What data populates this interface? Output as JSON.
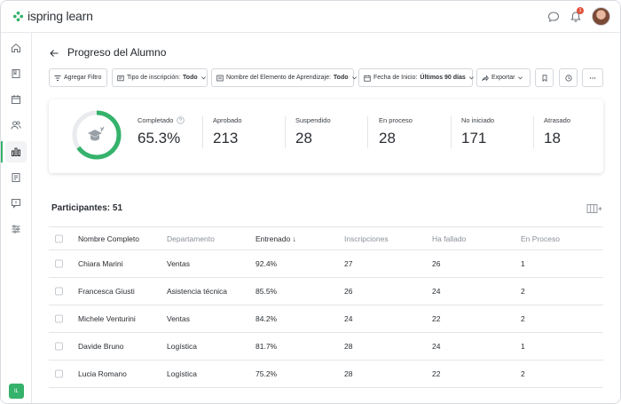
{
  "app": {
    "logo_text": "ispring learn",
    "notification_count": "1",
    "user_initials": "IL"
  },
  "header": {
    "title": "Progreso del Alumno"
  },
  "filters": {
    "add_filter": "Agregar Filtro",
    "enrollment_type_label": "Tipo de inscripción:",
    "enrollment_type_value": "Todo",
    "element_name_label": "Nombre del Elemento de Aprendizaje:",
    "element_name_value": "Todo",
    "start_date_label": "Fecha de Inicio:",
    "start_date_value": "Últimos 90 días",
    "export_label": "Exportar"
  },
  "stats": {
    "completed_label": "Completado",
    "completed_value": "65.3%",
    "completed_fraction": 0.653,
    "items": [
      {
        "label": "Aprobado",
        "value": "213"
      },
      {
        "label": "Suspendido",
        "value": "28"
      },
      {
        "label": "En proceso",
        "value": "28"
      },
      {
        "label": "No iniciado",
        "value": "171"
      },
      {
        "label": "Atrasado",
        "value": "18"
      }
    ]
  },
  "participants": {
    "title": "Participantes: 51",
    "columns": [
      "Nombre Completo",
      "Departamento",
      "Entrenado ↓",
      "Inscripciones",
      "Ha fallado",
      "En Proceso"
    ],
    "rows": [
      [
        "Chiara Marini",
        "Ventas",
        "92.4%",
        "27",
        "26",
        "1"
      ],
      [
        "Francesca Giusti",
        "Asistencia técnica",
        "85.5%",
        "26",
        "24",
        "2"
      ],
      [
        "Michele Venturini",
        "Ventas",
        "84.2%",
        "24",
        "22",
        "2"
      ],
      [
        "Davide Bruno",
        "Logística",
        "81.7%",
        "28",
        "24",
        "1"
      ],
      [
        "Lucia Romano",
        "Logística",
        "75.2%",
        "28",
        "22",
        "2"
      ]
    ]
  },
  "colors": {
    "accent": "#35b26b",
    "badge": "#e0533d"
  }
}
